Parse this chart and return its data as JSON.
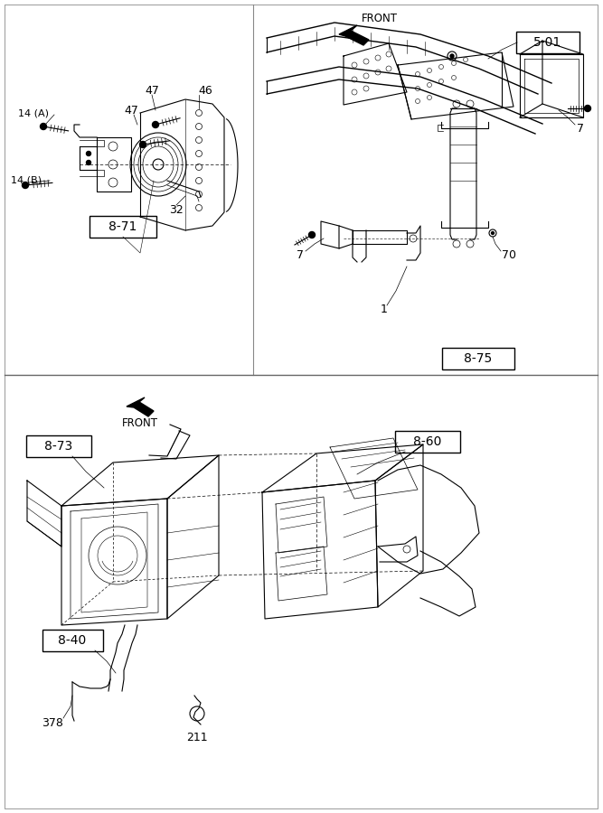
{
  "bg_color": "#ffffff",
  "line_color": "#000000",
  "label_8_71": "8-71",
  "label_8_75": "8-75",
  "label_8_73": "8-73",
  "label_8_60": "8-60",
  "label_8_40": "8-40",
  "label_5_01": "5-01",
  "figsize": [
    6.67,
    9.0
  ],
  "dpi": 100
}
